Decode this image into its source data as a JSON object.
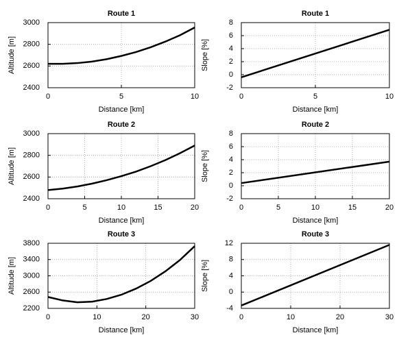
{
  "chart_data": [
    {
      "type": "line",
      "title": "Route 1",
      "xlabel": "Distance [km]",
      "ylabel": "Altitude [m]",
      "color": "#000000",
      "grid": true,
      "x": [
        0,
        1,
        2,
        3,
        4,
        5,
        6,
        7,
        8,
        9,
        10
      ],
      "values": [
        2620,
        2620,
        2627,
        2641,
        2663,
        2693,
        2729,
        2773,
        2825,
        2884,
        2955
      ],
      "xlim": [
        0,
        10
      ],
      "xticks": [
        0,
        5,
        10
      ],
      "ylim": [
        2400,
        3000
      ],
      "yticks": [
        2400,
        2600,
        2800,
        3000
      ]
    },
    {
      "type": "line",
      "title": "Route 1",
      "xlabel": "Distance [km]",
      "ylabel": "Slope [%]",
      "color": "#000000",
      "grid": true,
      "x": [
        0,
        10
      ],
      "values": [
        -0.4,
        6.9
      ],
      "xlim": [
        0,
        10
      ],
      "xticks": [
        0,
        5,
        10
      ],
      "ylim": [
        -2,
        8
      ],
      "yticks": [
        -2,
        0,
        2,
        4,
        6,
        8
      ]
    },
    {
      "type": "line",
      "title": "Route 2",
      "xlabel": "Distance [km]",
      "ylabel": "Altitude [m]",
      "color": "#000000",
      "grid": true,
      "x": [
        0,
        2,
        4,
        6,
        8,
        10,
        12,
        14,
        16,
        18,
        20
      ],
      "values": [
        2480,
        2493,
        2513,
        2539,
        2571,
        2608,
        2650,
        2700,
        2756,
        2820,
        2890
      ],
      "xlim": [
        0,
        20
      ],
      "xticks": [
        0,
        5,
        10,
        15,
        20
      ],
      "ylim": [
        2400,
        3000
      ],
      "yticks": [
        2400,
        2600,
        2800,
        3000
      ]
    },
    {
      "type": "line",
      "title": "Route 2",
      "xlabel": "Distance [km]",
      "ylabel": "Slope [%]",
      "color": "#000000",
      "grid": true,
      "x": [
        0,
        20
      ],
      "values": [
        0.4,
        3.7
      ],
      "xlim": [
        0,
        20
      ],
      "xticks": [
        0,
        5,
        10,
        15,
        20
      ],
      "ylim": [
        -2,
        8
      ],
      "yticks": [
        -2,
        0,
        2,
        4,
        6,
        8
      ]
    },
    {
      "type": "line",
      "title": "Route 3",
      "xlabel": "Distance [km]",
      "ylabel": "Altitude [m]",
      "color": "#000000",
      "grid": true,
      "x": [
        0,
        3,
        6,
        9,
        12,
        15,
        18,
        21,
        24,
        27,
        30
      ],
      "values": [
        2480,
        2395,
        2350,
        2365,
        2430,
        2535,
        2685,
        2875,
        3110,
        3390,
        3730
      ],
      "xlim": [
        0,
        30
      ],
      "xticks": [
        0,
        10,
        20,
        30
      ],
      "ylim": [
        2200,
        3800
      ],
      "yticks": [
        2200,
        2600,
        3000,
        3400,
        3800
      ]
    },
    {
      "type": "line",
      "title": "Route 3",
      "xlabel": "Distance [km]",
      "ylabel": "Slope [%]",
      "color": "#000000",
      "grid": true,
      "x": [
        0,
        30
      ],
      "values": [
        -3.3,
        11.6
      ],
      "xlim": [
        0,
        30
      ],
      "xticks": [
        0,
        10,
        20,
        30
      ],
      "ylim": [
        -4,
        12
      ],
      "yticks": [
        -4,
        0,
        4,
        8,
        12
      ]
    }
  ]
}
